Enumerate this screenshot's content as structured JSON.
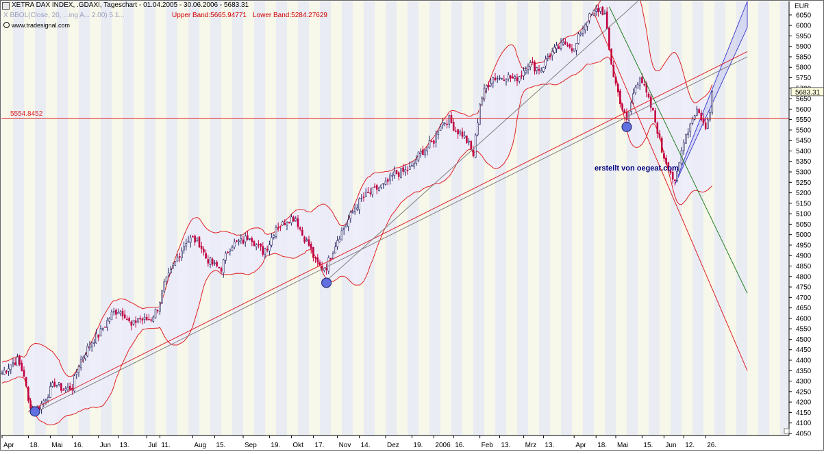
{
  "header": {
    "title": "XETRA DAX INDEX, .GDAXI, Tageschart - 01.04.2005 - 30.06.2006 - 5683.31",
    "indicator_partial": "X BBOL(Close, 20, ...ing A... 2.00) 5.1...",
    "upper_band": "Upper Band:5665.94771",
    "lower_band": "Lower Band:5284.27629",
    "source": "www.tradesignal.com"
  },
  "annotation": {
    "credit": "erstellt von oegeat.com",
    "hline_label": "5554.8452",
    "hline_value": 5554.8452
  },
  "colors": {
    "band_line": "#e02020",
    "band_fill": "#ececfa",
    "trend_red": "#e02020",
    "trend_gray": "#808080",
    "down_green": "#208020",
    "channel_fill": "#c8ccf0",
    "channel_line": "#4040d0",
    "candle_up": "#202060",
    "candle_down": "#c00040",
    "pivot_marker": "#6070e0",
    "stripe_a": "#f7f7ea",
    "stripe_b": "#e9ecf2"
  },
  "chart_data": {
    "type": "candlestick",
    "title": "XETRA DAX INDEX, .GDAXI, Tageschart",
    "currency": "EUR",
    "last_value": 5683.31,
    "ylim": [
      4040,
      6115
    ],
    "yticks": [
      4050,
      4100,
      4150,
      4200,
      4250,
      4300,
      4350,
      4400,
      4450,
      4500,
      4550,
      4600,
      4650,
      4700,
      4750,
      4800,
      4850,
      4900,
      4950,
      5000,
      5050,
      5100,
      5150,
      5200,
      5250,
      5300,
      5350,
      5400,
      5450,
      5500,
      5550,
      5600,
      5650,
      5700,
      5750,
      5800,
      5850,
      5900,
      5950,
      6000,
      6050
    ],
    "xticks": [
      {
        "label": "Apr",
        "day": 0
      },
      {
        "label": "18.",
        "day": 12
      },
      {
        "label": "Mai",
        "day": 22
      },
      {
        "label": "16.",
        "day": 32
      },
      {
        "label": "Jun",
        "day": 44
      },
      {
        "label": "13.",
        "day": 53
      },
      {
        "label": "Jul",
        "day": 66
      },
      {
        "label": "11.",
        "day": 72
      },
      {
        "label": "Aug",
        "day": 87
      },
      {
        "label": "15.",
        "day": 97
      },
      {
        "label": "Sep",
        "day": 110
      },
      {
        "label": "19.",
        "day": 122
      },
      {
        "label": "Okt",
        "day": 132
      },
      {
        "label": "17.",
        "day": 142
      },
      {
        "label": "Nov",
        "day": 153
      },
      {
        "label": "14.",
        "day": 163
      },
      {
        "label": "Dez",
        "day": 175
      },
      {
        "label": "19.",
        "day": 187
      },
      {
        "label": "2006",
        "day": 197
      },
      {
        "label": "16.",
        "day": 206
      },
      {
        "label": "Feb",
        "day": 218
      },
      {
        "label": "13.",
        "day": 227
      },
      {
        "label": "Mrz",
        "day": 238
      },
      {
        "label": "13.",
        "day": 247
      },
      {
        "label": "Apr",
        "day": 261
      },
      {
        "label": "18.",
        "day": 271
      },
      {
        "label": "Mai",
        "day": 280
      },
      {
        "label": "15.",
        "day": 292
      },
      {
        "label": "Jun",
        "day": 302
      },
      {
        "label": "12.",
        "day": 311
      },
      {
        "label": "26.",
        "day": 321
      }
    ],
    "n_days": 325,
    "price_anchors": [
      [
        0,
        4340
      ],
      [
        4,
        4380
      ],
      [
        7,
        4400
      ],
      [
        10,
        4330
      ],
      [
        12,
        4200
      ],
      [
        15,
        4160
      ],
      [
        18,
        4190
      ],
      [
        21,
        4240
      ],
      [
        24,
        4290
      ],
      [
        28,
        4260
      ],
      [
        32,
        4270
      ],
      [
        35,
        4380
      ],
      [
        38,
        4440
      ],
      [
        41,
        4490
      ],
      [
        44,
        4520
      ],
      [
        47,
        4570
      ],
      [
        50,
        4620
      ],
      [
        53,
        4640
      ],
      [
        56,
        4620
      ],
      [
        59,
        4560
      ],
      [
        62,
        4600
      ],
      [
        65,
        4590
      ],
      [
        68,
        4600
      ],
      [
        71,
        4650
      ],
      [
        74,
        4760
      ],
      [
        77,
        4820
      ],
      [
        80,
        4890
      ],
      [
        84,
        4970
      ],
      [
        87,
        4980
      ],
      [
        90,
        4960
      ],
      [
        93,
        4890
      ],
      [
        97,
        4850
      ],
      [
        100,
        4840
      ],
      [
        104,
        4950
      ],
      [
        107,
        4960
      ],
      [
        110,
        4970
      ],
      [
        113,
        5000
      ],
      [
        116,
        4950
      ],
      [
        119,
        4920
      ],
      [
        122,
        4960
      ],
      [
        125,
        5040
      ],
      [
        128,
        5050
      ],
      [
        131,
        5080
      ],
      [
        134,
        5080
      ],
      [
        137,
        5000
      ],
      [
        140,
        4950
      ],
      [
        143,
        4870
      ],
      [
        146,
        4840
      ],
      [
        148,
        4850
      ],
      [
        150,
        4900
      ],
      [
        153,
        4980
      ],
      [
        157,
        5050
      ],
      [
        161,
        5130
      ],
      [
        165,
        5180
      ],
      [
        168,
        5200
      ],
      [
        171,
        5220
      ],
      [
        175,
        5240
      ],
      [
        179,
        5290
      ],
      [
        183,
        5300
      ],
      [
        187,
        5320
      ],
      [
        190,
        5380
      ],
      [
        194,
        5420
      ],
      [
        197,
        5450
      ],
      [
        200,
        5530
      ],
      [
        204,
        5550
      ],
      [
        207,
        5500
      ],
      [
        210,
        5480
      ],
      [
        213,
        5430
      ],
      [
        215,
        5380
      ],
      [
        218,
        5630
      ],
      [
        221,
        5710
      ],
      [
        224,
        5750
      ],
      [
        227,
        5750
      ],
      [
        230,
        5760
      ],
      [
        234,
        5740
      ],
      [
        237,
        5770
      ],
      [
        240,
        5820
      ],
      [
        243,
        5800
      ],
      [
        246,
        5790
      ],
      [
        249,
        5850
      ],
      [
        252,
        5880
      ],
      [
        255,
        5900
      ],
      [
        258,
        5920
      ],
      [
        261,
        5880
      ],
      [
        264,
        5970
      ],
      [
        267,
        6030
      ],
      [
        270,
        6060
      ],
      [
        273,
        6080
      ],
      [
        275,
        6050
      ],
      [
        277,
        5880
      ],
      [
        279,
        5760
      ],
      [
        281,
        5680
      ],
      [
        283,
        5600
      ],
      [
        285,
        5540
      ],
      [
        287,
        5630
      ],
      [
        289,
        5710
      ],
      [
        291,
        5760
      ],
      [
        293,
        5700
      ],
      [
        295,
        5640
      ],
      [
        297,
        5580
      ],
      [
        299,
        5500
      ],
      [
        301,
        5400
      ],
      [
        303,
        5350
      ],
      [
        305,
        5300
      ],
      [
        307,
        5240
      ],
      [
        309,
        5340
      ],
      [
        311,
        5460
      ],
      [
        313,
        5500
      ],
      [
        315,
        5560
      ],
      [
        317,
        5600
      ],
      [
        319,
        5560
      ],
      [
        321,
        5500
      ],
      [
        323,
        5600
      ],
      [
        324,
        5683
      ]
    ],
    "bollinger": {
      "period": 20,
      "deviations": 2.0,
      "upper_last": 5665.94771,
      "lower_last": 5284.27629
    },
    "pivot_lows": [
      {
        "day": 15,
        "value": 4155
      },
      {
        "day": 148,
        "value": 4770
      },
      {
        "day": 285,
        "value": 5515
      }
    ],
    "trendlines": [
      {
        "name": "support-red",
        "color": "trend_red",
        "from": [
          12,
          4155
        ],
        "to": [
          340,
          5875
        ]
      },
      {
        "name": "support-gray-lower",
        "color": "trend_gray",
        "from": [
          15,
          4150
        ],
        "to": [
          340,
          5850
        ]
      },
      {
        "name": "support-gray-upper",
        "color": "trend_gray",
        "from": [
          148,
          4780
        ],
        "to": [
          290,
          6115
        ]
      },
      {
        "name": "resistance-red",
        "color": "trend_red",
        "from": [
          270,
          6060
        ],
        "to": [
          340,
          4350
        ]
      },
      {
        "name": "down-green",
        "color": "down_green",
        "from": [
          277,
          6090
        ],
        "to": [
          340,
          4720
        ]
      }
    ],
    "channel": {
      "upper_from": [
        312,
        5380
      ],
      "upper_to": [
        340,
        6115
      ],
      "lower_from": [
        307,
        5240
      ],
      "lower_to": [
        340,
        5990
      ]
    }
  }
}
